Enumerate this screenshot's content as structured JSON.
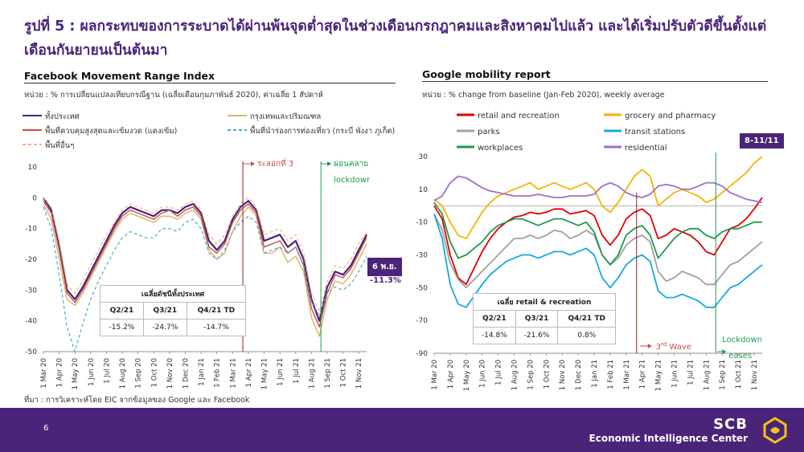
{
  "page": {
    "title": "รูปที่ 5 : ผลกระทบของการระบาดได้ผ่านพ้นจุดต่ำสุดในช่วงเดือนกรกฎาคมและสิงหาคมไปแล้ว และได้เริ่มปรับตัวดีขึ้นตั้งแต่เดือนกันยายนเป็นต้นมา",
    "source": "ที่มา : การวิเคราะห์โดย EIC จากข้อมูลของ Google และ Facebook",
    "page_number": "6",
    "brand_name": "SCB",
    "brand_sub": "Economic Intelligence Center"
  },
  "left": {
    "title": "Facebook Movement Range Index",
    "unit": "หน่วย : % การเปลี่ยนแปลงเทียบกรณีฐาน (เฉลี่ยเดือนกุมภาพันธ์ 2020), ค่าเฉลี่ย 1 สัปดาห์",
    "table": {
      "title": "เฉลี่ยดัชนีทั้งประเทศ",
      "headers": [
        "Q2/21",
        "Q3/21",
        "Q4/21 TD"
      ],
      "values": [
        "-15.2%",
        "-24.7%",
        "-14.7%"
      ]
    },
    "callout_date": "6 พ.ย.",
    "callout_value": "-11.3%",
    "annotation_wave": "ระลอกที่ 3",
    "annotation_ease_1": "ผ่อนคลาย",
    "annotation_ease_2": "lockdown"
  },
  "right": {
    "title": "Google mobility report",
    "unit": "หน่วย : % change from baseline (Jan-Feb 2020), weekly average",
    "table": {
      "title": "เฉลี่ย retail & recreation",
      "headers": [
        "Q2/21",
        "Q3/21",
        "Q4/21 TD"
      ],
      "values": [
        "-14.8%",
        "-21.6%",
        "0.8%"
      ]
    },
    "callout_date": "8-11/11",
    "annotation_wave_main": "3",
    "annotation_wave_sup": "rd",
    "annotation_wave_tail": " Wave",
    "annotation_ease_1": "Lockdown",
    "annotation_ease_2": "eases"
  },
  "chart_data": [
    {
      "type": "line",
      "title": "Facebook Movement Range Index",
      "ylim": [
        -50,
        10
      ],
      "yticks": [
        "10",
        "0",
        "-10",
        "-20",
        "-30",
        "-40",
        "-50"
      ],
      "x_tick_labels": [
        "1 Mar 20",
        "1 Apr 20",
        "1 May 20",
        "1 Jun 20",
        "1 Jul 20",
        "1 Aug 20",
        "1 Sep 20",
        "1 Oct 20",
        "1 Nov 20",
        "1 Dec 20",
        "1 Jan 21",
        "1 Feb 21",
        "1 Mar 21",
        "1 Apr 21",
        "1 May 21",
        "1 Jun 21",
        "1 Jul 21",
        "1 Aug 21",
        "1 Sep 21",
        "1 Oct 21",
        "1 Nov 21"
      ],
      "x_months": [
        0,
        1,
        2,
        3,
        4,
        5,
        6,
        7,
        8,
        9,
        10,
        11,
        12,
        13,
        14,
        15,
        16,
        17,
        18,
        19,
        20,
        21,
        22,
        23,
        24,
        25,
        26,
        27,
        28,
        29,
        30,
        31,
        32,
        33,
        34,
        35,
        36,
        37,
        38,
        39,
        40,
        41
      ],
      "series": [
        {
          "name": "ทั้งประเทศ",
          "color": "#4a2479",
          "width": 2.2,
          "dash": "",
          "values": [
            0,
            -4,
            -16,
            -30,
            -33,
            -29,
            -24,
            -19,
            -14,
            -9,
            -5,
            -3,
            -4,
            -5,
            -6,
            -4,
            -4,
            -5,
            -3,
            -2,
            -5,
            -14,
            -17,
            -14,
            -7,
            -3,
            -1,
            -4,
            -14,
            -13,
            -12,
            -16,
            -14,
            -20,
            -33,
            -40,
            -29,
            -24,
            -25,
            -22,
            -17,
            -12
          ]
        },
        {
          "name": "กรุงเทพและปริมณฑล",
          "color": "#d9b36a",
          "width": 1.4,
          "dash": "",
          "values": [
            -2,
            -7,
            -20,
            -33,
            -35,
            -31,
            -26,
            -21,
            -16,
            -11,
            -7,
            -5,
            -6,
            -7,
            -8,
            -6,
            -6,
            -7,
            -5,
            -4,
            -7,
            -17,
            -20,
            -18,
            -11,
            -6,
            -3,
            -6,
            -18,
            -18,
            -16,
            -21,
            -19,
            -24,
            -39,
            -45,
            -33,
            -27,
            -28,
            -25,
            -20,
            -15
          ]
        },
        {
          "name": "พื้นที่ควบคุมสูงสุดและเข้มงวด (แดงเข้ม)",
          "color": "#c0504d",
          "width": 1.4,
          "dash": "",
          "values": [
            -1,
            -5,
            -17,
            -31,
            -34,
            -30,
            -25,
            -20,
            -15,
            -10,
            -6,
            -4,
            -5,
            -6,
            -7,
            -5,
            -4,
            -6,
            -4,
            -3,
            -6,
            -16,
            -18,
            -15,
            -8,
            -4,
            -2,
            -5,
            -16,
            -15,
            -14,
            -18,
            -16,
            -22,
            -36,
            -42,
            -31,
            -25,
            -26,
            -23,
            -18,
            -13
          ]
        },
        {
          "name": "พื้นที่นำร่องการท่องเที่ยว (กระบี่ พังงา ภูเก็ต)",
          "color": "#4bacc6",
          "width": 1.2,
          "dash": "4,3",
          "values": [
            -3,
            -10,
            -25,
            -42,
            -50,
            -41,
            -33,
            -27,
            -22,
            -17,
            -13,
            -11,
            -12,
            -13,
            -13,
            -10,
            -10,
            -11,
            -8,
            -7,
            -10,
            -18,
            -20,
            -17,
            -11,
            -8,
            -6,
            -8,
            -18,
            -17,
            -16,
            -18,
            -16,
            -22,
            -34,
            -38,
            -31,
            -29,
            -30,
            -28,
            -24,
            -19
          ]
        },
        {
          "name": "พื้นที่อื่นๆ",
          "color": "#f4b183",
          "width": 1.2,
          "dash": "4,3",
          "values": [
            0,
            -3,
            -14,
            -28,
            -31,
            -27,
            -22,
            -17,
            -12,
            -8,
            -4,
            -2,
            -3,
            -4,
            -5,
            -3,
            -3,
            -4,
            -2,
            -1,
            -4,
            -12,
            -15,
            -12,
            -6,
            -2,
            0,
            -3,
            -12,
            -11,
            -10,
            -14,
            -12,
            -18,
            -31,
            -37,
            -27,
            -22,
            -23,
            -20,
            -15,
            -11
          ]
        }
      ]
    },
    {
      "type": "line",
      "title": "Google mobility report",
      "ylim": [
        -90,
        30
      ],
      "yticks": [
        "30",
        "10",
        "-10",
        "-30",
        "-50",
        "-70",
        "-90"
      ],
      "x_tick_labels": [
        "1 Mar 20",
        "1 Apr 20",
        "1 May 20",
        "1 Jun 20",
        "1 Jul 20",
        "1 Aug 20",
        "1 Sep 20",
        "1 Oct 20",
        "1 Nov 20",
        "1 Dec 20",
        "1 Jan 21",
        "1 Feb 21",
        "1 Mar 21",
        "1 Apr 21",
        "1 May 21",
        "1 Jun 21",
        "1 Jul 21",
        "1 Aug 21",
        "1 Sep 21",
        "1 Oct 21",
        "1 Nov 21"
      ],
      "x_months": [
        0,
        1,
        2,
        3,
        4,
        5,
        6,
        7,
        8,
        9,
        10,
        11,
        12,
        13,
        14,
        15,
        16,
        17,
        18,
        19,
        20,
        21,
        22,
        23,
        24,
        25,
        26,
        27,
        28,
        29,
        30,
        31,
        32,
        33,
        34,
        35,
        36,
        37,
        38,
        39,
        40,
        41
      ],
      "series": [
        {
          "name": "retail and recreation",
          "color": "#e00000",
          "width": 1.8,
          "values": [
            0,
            -8,
            -30,
            -44,
            -48,
            -38,
            -28,
            -20,
            -14,
            -10,
            -7,
            -6,
            -4,
            -5,
            -4,
            -2,
            -2,
            -5,
            -4,
            -3,
            -6,
            -18,
            -24,
            -18,
            -8,
            -4,
            -2,
            -6,
            -20,
            -18,
            -14,
            -16,
            -18,
            -22,
            -28,
            -30,
            -22,
            -14,
            -12,
            -8,
            -2,
            5
          ]
        },
        {
          "name": "grocery and pharmacy",
          "color": "#f5b400",
          "width": 1.8,
          "values": [
            4,
            0,
            -10,
            -18,
            -20,
            -12,
            -4,
            2,
            6,
            8,
            10,
            12,
            14,
            10,
            12,
            14,
            12,
            10,
            12,
            14,
            10,
            0,
            -4,
            2,
            10,
            18,
            22,
            18,
            0,
            4,
            8,
            10,
            8,
            6,
            2,
            4,
            8,
            12,
            16,
            20,
            26,
            30
          ]
        },
        {
          "name": "parks",
          "color": "#a0a0a0",
          "width": 1.8,
          "values": [
            -5,
            -15,
            -35,
            -45,
            -50,
            -45,
            -40,
            -35,
            -30,
            -25,
            -20,
            -20,
            -18,
            -20,
            -18,
            -15,
            -16,
            -20,
            -18,
            -15,
            -18,
            -30,
            -36,
            -32,
            -24,
            -20,
            -18,
            -22,
            -40,
            -46,
            -44,
            -40,
            -42,
            -44,
            -48,
            -48,
            -42,
            -36,
            -34,
            -30,
            -26,
            -22
          ]
        },
        {
          "name": "transit stations",
          "color": "#16a9e0",
          "width": 1.8,
          "values": [
            -5,
            -20,
            -48,
            -60,
            -62,
            -55,
            -48,
            -42,
            -38,
            -34,
            -32,
            -30,
            -30,
            -32,
            -30,
            -28,
            -28,
            -30,
            -28,
            -26,
            -30,
            -44,
            -50,
            -44,
            -36,
            -32,
            -30,
            -34,
            -52,
            -56,
            -56,
            -54,
            -56,
            -58,
            -62,
            -62,
            -56,
            -50,
            -48,
            -44,
            -40,
            -36
          ]
        },
        {
          "name": "workplaces",
          "color": "#1f9a4f",
          "width": 1.8,
          "values": [
            2,
            -5,
            -22,
            -32,
            -30,
            -26,
            -22,
            -16,
            -12,
            -10,
            -8,
            -8,
            -10,
            -12,
            -10,
            -8,
            -8,
            -10,
            -12,
            -10,
            -16,
            -30,
            -36,
            -30,
            -18,
            -14,
            -12,
            -18,
            -32,
            -26,
            -20,
            -16,
            -14,
            -14,
            -18,
            -20,
            -16,
            -14,
            -14,
            -12,
            -10,
            -10
          ]
        },
        {
          "name": "residential",
          "color": "#9b72c8",
          "width": 1.8,
          "values": [
            3,
            6,
            14,
            18,
            17,
            14,
            11,
            9,
            8,
            7,
            6,
            6,
            6,
            7,
            6,
            5,
            5,
            6,
            6,
            6,
            7,
            12,
            14,
            12,
            8,
            6,
            5,
            7,
            12,
            13,
            12,
            10,
            10,
            12,
            14,
            14,
            12,
            8,
            6,
            4,
            3,
            2
          ]
        }
      ]
    }
  ]
}
